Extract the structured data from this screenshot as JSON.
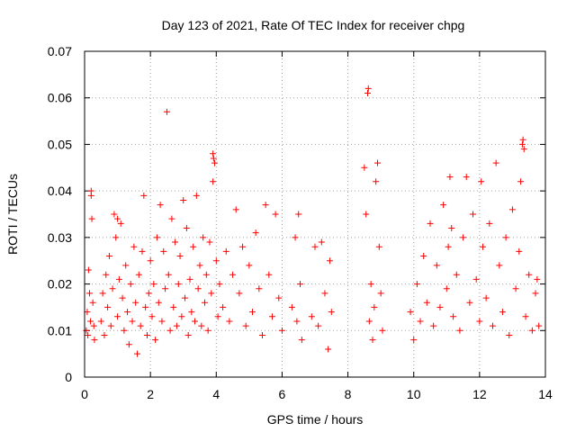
{
  "chart_data": {
    "type": "scatter",
    "title": "Day 123 of 2021, Rate Of TEC Index for receiver chpg",
    "xlabel": "GPS time / hours",
    "ylabel": "ROTI / TECUs",
    "xlim": [
      0,
      14
    ],
    "ylim": [
      0,
      0.07
    ],
    "xticks": [
      0,
      2,
      4,
      6,
      8,
      10,
      12,
      14
    ],
    "xtick_labels": [
      "0",
      "2",
      "4",
      "6",
      "8",
      "10",
      "12",
      "14"
    ],
    "yticks": [
      0,
      0.01,
      0.02,
      0.03,
      0.04,
      0.05,
      0.06,
      0.07
    ],
    "ytick_labels": [
      "0",
      "0.01",
      "0.02",
      "0.03",
      "0.04",
      "0.05",
      "0.06",
      "0.07"
    ],
    "grid": true,
    "marker": "+",
    "color": "#ff0000",
    "series": [
      {
        "name": "ROTI",
        "points": [
          [
            0.05,
            0.01
          ],
          [
            0.08,
            0.014
          ],
          [
            0.1,
            0.009
          ],
          [
            0.12,
            0.023
          ],
          [
            0.15,
            0.018
          ],
          [
            0.18,
            0.012
          ],
          [
            0.2,
            0.04
          ],
          [
            0.2,
            0.039
          ],
          [
            0.22,
            0.034
          ],
          [
            0.25,
            0.016
          ],
          [
            0.28,
            0.011
          ],
          [
            0.3,
            0.008
          ],
          [
            0.5,
            0.012
          ],
          [
            0.55,
            0.018
          ],
          [
            0.6,
            0.009
          ],
          [
            0.65,
            0.022
          ],
          [
            0.7,
            0.015
          ],
          [
            0.75,
            0.026
          ],
          [
            0.8,
            0.011
          ],
          [
            0.85,
            0.019
          ],
          [
            0.9,
            0.035
          ],
          [
            0.95,
            0.03
          ],
          [
            1.0,
            0.013
          ],
          [
            1.0,
            0.034
          ],
          [
            1.05,
            0.021
          ],
          [
            1.1,
            0.033
          ],
          [
            1.15,
            0.017
          ],
          [
            1.2,
            0.01
          ],
          [
            1.25,
            0.024
          ],
          [
            1.3,
            0.014
          ],
          [
            1.35,
            0.007
          ],
          [
            1.4,
            0.02
          ],
          [
            1.45,
            0.012
          ],
          [
            1.5,
            0.028
          ],
          [
            1.55,
            0.016
          ],
          [
            1.6,
            0.005
          ],
          [
            1.65,
            0.022
          ],
          [
            1.7,
            0.011
          ],
          [
            1.75,
            0.027
          ],
          [
            1.8,
            0.039
          ],
          [
            1.85,
            0.015
          ],
          [
            1.9,
            0.009
          ],
          [
            1.95,
            0.018
          ],
          [
            2.0,
            0.025
          ],
          [
            2.05,
            0.013
          ],
          [
            2.1,
            0.02
          ],
          [
            2.15,
            0.008
          ],
          [
            2.2,
            0.03
          ],
          [
            2.25,
            0.016
          ],
          [
            2.3,
            0.037
          ],
          [
            2.35,
            0.012
          ],
          [
            2.4,
            0.027
          ],
          [
            2.45,
            0.019
          ],
          [
            2.5,
            0.057
          ],
          [
            2.55,
            0.022
          ],
          [
            2.6,
            0.01
          ],
          [
            2.65,
            0.034
          ],
          [
            2.7,
            0.015
          ],
          [
            2.75,
            0.029
          ],
          [
            2.8,
            0.011
          ],
          [
            2.85,
            0.02
          ],
          [
            2.9,
            0.026
          ],
          [
            2.95,
            0.013
          ],
          [
            3.0,
            0.038
          ],
          [
            3.05,
            0.017
          ],
          [
            3.1,
            0.032
          ],
          [
            3.15,
            0.009
          ],
          [
            3.2,
            0.021
          ],
          [
            3.25,
            0.014
          ],
          [
            3.3,
            0.028
          ],
          [
            3.35,
            0.012
          ],
          [
            3.4,
            0.039
          ],
          [
            3.45,
            0.019
          ],
          [
            3.5,
            0.024
          ],
          [
            3.55,
            0.011
          ],
          [
            3.6,
            0.03
          ],
          [
            3.65,
            0.016
          ],
          [
            3.7,
            0.022
          ],
          [
            3.75,
            0.01
          ],
          [
            3.8,
            0.029
          ],
          [
            3.85,
            0.018
          ],
          [
            3.9,
            0.048
          ],
          [
            3.92,
            0.047
          ],
          [
            3.95,
            0.046
          ],
          [
            3.9,
            0.042
          ],
          [
            4.0,
            0.025
          ],
          [
            4.05,
            0.013
          ],
          [
            4.1,
            0.02
          ],
          [
            4.2,
            0.015
          ],
          [
            4.3,
            0.027
          ],
          [
            4.4,
            0.012
          ],
          [
            4.5,
            0.022
          ],
          [
            4.6,
            0.036
          ],
          [
            4.7,
            0.018
          ],
          [
            4.8,
            0.028
          ],
          [
            4.9,
            0.011
          ],
          [
            5.0,
            0.024
          ],
          [
            5.1,
            0.014
          ],
          [
            5.2,
            0.031
          ],
          [
            5.3,
            0.019
          ],
          [
            5.4,
            0.009
          ],
          [
            5.5,
            0.037
          ],
          [
            5.6,
            0.022
          ],
          [
            5.7,
            0.013
          ],
          [
            5.8,
            0.035
          ],
          [
            5.9,
            0.017
          ],
          [
            6.0,
            0.01
          ],
          [
            6.3,
            0.015
          ],
          [
            6.4,
            0.03
          ],
          [
            6.45,
            0.012
          ],
          [
            6.5,
            0.035
          ],
          [
            6.55,
            0.02
          ],
          [
            6.6,
            0.008
          ],
          [
            6.9,
            0.013
          ],
          [
            7.0,
            0.028
          ],
          [
            7.1,
            0.011
          ],
          [
            7.2,
            0.029
          ],
          [
            7.3,
            0.018
          ],
          [
            7.4,
            0.006
          ],
          [
            7.45,
            0.025
          ],
          [
            7.5,
            0.014
          ],
          [
            8.5,
            0.045
          ],
          [
            8.55,
            0.035
          ],
          [
            8.6,
            0.061
          ],
          [
            8.62,
            0.062
          ],
          [
            8.65,
            0.012
          ],
          [
            8.7,
            0.02
          ],
          [
            8.75,
            0.008
          ],
          [
            8.8,
            0.015
          ],
          [
            8.85,
            0.042
          ],
          [
            8.9,
            0.046
          ],
          [
            8.95,
            0.028
          ],
          [
            9.0,
            0.018
          ],
          [
            9.05,
            0.01
          ],
          [
            9.9,
            0.014
          ],
          [
            10.0,
            0.008
          ],
          [
            10.1,
            0.02
          ],
          [
            10.2,
            0.012
          ],
          [
            10.3,
            0.026
          ],
          [
            10.4,
            0.016
          ],
          [
            10.5,
            0.033
          ],
          [
            10.6,
            0.011
          ],
          [
            10.7,
            0.024
          ],
          [
            10.8,
            0.015
          ],
          [
            10.9,
            0.037
          ],
          [
            11.0,
            0.019
          ],
          [
            11.05,
            0.028
          ],
          [
            11.1,
            0.043
          ],
          [
            11.15,
            0.032
          ],
          [
            11.2,
            0.013
          ],
          [
            11.3,
            0.022
          ],
          [
            11.4,
            0.01
          ],
          [
            11.5,
            0.03
          ],
          [
            11.6,
            0.043
          ],
          [
            11.7,
            0.016
          ],
          [
            11.8,
            0.035
          ],
          [
            11.9,
            0.021
          ],
          [
            12.0,
            0.012
          ],
          [
            12.05,
            0.042
          ],
          [
            12.1,
            0.028
          ],
          [
            12.2,
            0.017
          ],
          [
            12.3,
            0.033
          ],
          [
            12.4,
            0.011
          ],
          [
            12.5,
            0.046
          ],
          [
            12.6,
            0.024
          ],
          [
            12.7,
            0.014
          ],
          [
            12.8,
            0.03
          ],
          [
            12.9,
            0.009
          ],
          [
            13.0,
            0.036
          ],
          [
            13.1,
            0.019
          ],
          [
            13.2,
            0.027
          ],
          [
            13.25,
            0.042
          ],
          [
            13.3,
            0.05
          ],
          [
            13.32,
            0.051
          ],
          [
            13.35,
            0.049
          ],
          [
            13.4,
            0.013
          ],
          [
            13.5,
            0.022
          ],
          [
            13.6,
            0.01
          ],
          [
            13.7,
            0.018
          ],
          [
            13.75,
            0.021
          ],
          [
            13.8,
            0.011
          ]
        ]
      }
    ]
  }
}
